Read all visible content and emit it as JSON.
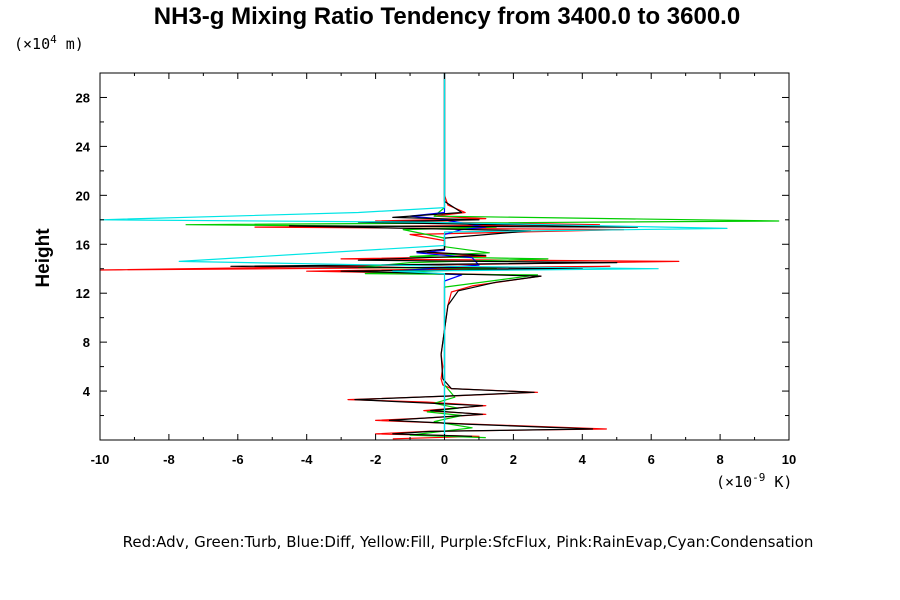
{
  "chart_data": {
    "type": "line",
    "title": "NH3-g Mixing Ratio Tendency from 3400.0 to 3600.0",
    "ylabel": "Height",
    "y_unit": {
      "prefix": "(×10",
      "exp": "4",
      "suffix": " m)"
    },
    "x_unit": {
      "prefix": "(×10",
      "exp": "-9",
      "suffix": " K)"
    },
    "xlim": [
      -10,
      10
    ],
    "ylim": [
      0,
      30
    ],
    "x_ticks": [
      -10,
      -8,
      -6,
      -4,
      -2,
      0,
      2,
      4,
      6,
      8,
      10
    ],
    "y_ticks": [
      4,
      8,
      12,
      16,
      20,
      24,
      28
    ],
    "legend_text": "Red:Adv, Green:Turb, Blue:Diff, Yellow:Fill, Purple:SfcFlux, Pink:RainEvap,Cyan:Condensation",
    "legend_position": "bottom",
    "series": [
      {
        "name": "Adv",
        "color": "#ff0000",
        "points": [
          [
            0,
            30
          ],
          [
            0,
            20
          ],
          [
            0.1,
            19.2
          ],
          [
            0.6,
            18.6
          ],
          [
            -0.3,
            18.3
          ],
          [
            1.2,
            18.1
          ],
          [
            -2,
            17.9
          ],
          [
            4.5,
            17.6
          ],
          [
            -5.5,
            17.4
          ],
          [
            5.2,
            17.2
          ],
          [
            -1,
            16.8
          ],
          [
            0,
            16.3
          ],
          [
            0,
            15.6
          ],
          [
            -0.5,
            15.3
          ],
          [
            1.2,
            15
          ],
          [
            -3,
            14.8
          ],
          [
            6.8,
            14.6
          ],
          [
            -10,
            13.9
          ],
          [
            4.8,
            14.2
          ],
          [
            -4,
            13.8
          ],
          [
            2,
            13.5
          ],
          [
            2.8,
            13.4
          ],
          [
            1.8,
            13
          ],
          [
            0.8,
            12.6
          ],
          [
            0.2,
            12.1
          ],
          [
            0.1,
            11
          ],
          [
            0,
            9
          ],
          [
            -0.1,
            7
          ],
          [
            -0.05,
            6
          ],
          [
            -0.1,
            5
          ],
          [
            -0.05,
            4.5
          ],
          [
            0.2,
            4.2
          ],
          [
            2.7,
            3.9
          ],
          [
            0.2,
            3.6
          ],
          [
            -2.8,
            3.3
          ],
          [
            -0.5,
            3.1
          ],
          [
            1.2,
            2.8
          ],
          [
            -0.6,
            2.4
          ],
          [
            1.2,
            2.1
          ],
          [
            -0.5,
            1.8
          ],
          [
            -2.0,
            1.6
          ],
          [
            0.8,
            1.3
          ],
          [
            4.7,
            0.9
          ],
          [
            -0.5,
            0.7
          ],
          [
            -2.0,
            0.5
          ],
          [
            1.0,
            0.3
          ],
          [
            -1.5,
            0.1
          ]
        ]
      },
      {
        "name": "Turb",
        "color": "#00cc00",
        "points": [
          [
            0,
            30
          ],
          [
            0,
            20
          ],
          [
            0,
            19
          ],
          [
            -0.3,
            18.3
          ],
          [
            9.7,
            17.9
          ],
          [
            -7.5,
            17.6
          ],
          [
            1.5,
            17.4
          ],
          [
            -1.2,
            17.2
          ],
          [
            0,
            16.5
          ],
          [
            0,
            15.8
          ],
          [
            1.3,
            15.3
          ],
          [
            -1,
            15
          ],
          [
            3,
            14.8
          ],
          [
            -1,
            14.5
          ],
          [
            -2.5,
            14.1
          ],
          [
            1.5,
            14
          ],
          [
            -2.3,
            13.6
          ],
          [
            2.7,
            13.5
          ],
          [
            0,
            12.5
          ],
          [
            0,
            4.5
          ],
          [
            0.3,
            3.5
          ],
          [
            -0.3,
            3
          ],
          [
            0.4,
            2.6
          ],
          [
            -0.5,
            2.3
          ],
          [
            0.5,
            2
          ],
          [
            -0.3,
            1.5
          ],
          [
            0.8,
            1
          ],
          [
            -1.0,
            0.4
          ],
          [
            1.2,
            0.2
          ]
        ]
      },
      {
        "name": "Diff",
        "color": "#0000ff",
        "points": [
          [
            0,
            30
          ],
          [
            0,
            18.6
          ],
          [
            -1,
            18.3
          ],
          [
            -0.2,
            18.1
          ],
          [
            1.2,
            17.4
          ],
          [
            0.5,
            17.2
          ],
          [
            0,
            16.8
          ],
          [
            0,
            15.5
          ],
          [
            -0.8,
            15.3
          ],
          [
            0.8,
            14.9
          ],
          [
            1,
            14.3
          ],
          [
            -1.5,
            13.8
          ],
          [
            0.5,
            13.5
          ],
          [
            0,
            13
          ],
          [
            0,
            0.3
          ]
        ]
      },
      {
        "name": "Black",
        "color": "#000000",
        "points": [
          [
            0,
            30
          ],
          [
            0,
            19.5
          ],
          [
            0.5,
            18.6
          ],
          [
            -1.5,
            18.2
          ],
          [
            1,
            18
          ],
          [
            -2.5,
            17.8
          ],
          [
            5.6,
            17.4
          ],
          [
            -4.5,
            17.5
          ],
          [
            2.5,
            17.1
          ],
          [
            0,
            16.5
          ],
          [
            0,
            15.6
          ],
          [
            -0.8,
            15.4
          ],
          [
            1.2,
            15.1
          ],
          [
            -2.5,
            14.7
          ],
          [
            5,
            14.5
          ],
          [
            -6.2,
            14.2
          ],
          [
            4,
            14
          ],
          [
            -3,
            13.8
          ],
          [
            2.8,
            13.4
          ],
          [
            1.5,
            12.9
          ],
          [
            0.4,
            12.2
          ],
          [
            0.1,
            11
          ],
          [
            0,
            9
          ],
          [
            -0.1,
            7
          ],
          [
            -0.05,
            5
          ],
          [
            0.2,
            4.2
          ],
          [
            2.6,
            3.9
          ],
          [
            0.1,
            3.6
          ],
          [
            -2.6,
            3.3
          ],
          [
            1.1,
            2.8
          ],
          [
            -0.4,
            2.4
          ],
          [
            1.1,
            2.1
          ],
          [
            -1.6,
            1.6
          ],
          [
            0.6,
            1.3
          ],
          [
            4.3,
            0.9
          ],
          [
            -0.4,
            0.7
          ],
          [
            -1.5,
            0.5
          ],
          [
            0.8,
            0.3
          ]
        ]
      },
      {
        "name": "Condensation",
        "color": "#00e5e5",
        "points": [
          [
            0,
            30
          ],
          [
            0,
            19
          ],
          [
            -2.5,
            18.6
          ],
          [
            -10,
            18
          ],
          [
            -0.5,
            17.8
          ],
          [
            8.2,
            17.3
          ],
          [
            0,
            17
          ],
          [
            0,
            15.9
          ],
          [
            -7.7,
            14.6
          ],
          [
            0.2,
            14.2
          ],
          [
            6.2,
            14
          ],
          [
            -1.5,
            13.8
          ],
          [
            0,
            13.6
          ],
          [
            0,
            0.2
          ]
        ]
      }
    ]
  }
}
